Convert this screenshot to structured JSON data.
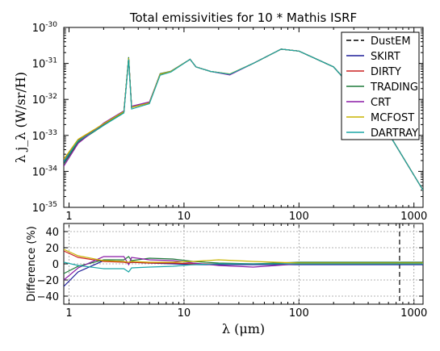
{
  "chart_data": [
    {
      "type": "line",
      "title": "Total emissivities for 10 * Mathis ISRF",
      "xlabel": "",
      "ylabel": "λ j_λ  (W/sr/H)",
      "x_scale": "log",
      "y_scale": "log",
      "xlim": [
        0.9,
        1200
      ],
      "ylim": [
        1e-35,
        1e-30
      ],
      "x_tick_labels": [
        "1",
        "10",
        "100",
        "1000"
      ],
      "y_tick_labels": [
        {
          "base": "10",
          "exp": "-30"
        },
        {
          "base": "10",
          "exp": "-31"
        },
        {
          "base": "10",
          "exp": "-32"
        },
        {
          "base": "10",
          "exp": "-33"
        },
        {
          "base": "10",
          "exp": "-34"
        },
        {
          "base": "10",
          "exp": "-35"
        }
      ],
      "grid": false,
      "legend_position": "top-right",
      "series": [
        {
          "name": "DustEM",
          "color": "#000000",
          "style": "dashed",
          "x": [
            0.9,
            1.2,
            2,
            3.0,
            3.3,
            3.5,
            5,
            6.2,
            7.7,
            11.3,
            12.7,
            17,
            25,
            40,
            70,
            100,
            200,
            500,
            1200
          ],
          "y": [
            1.8e-34,
            7e-34,
            2e-33,
            4.5e-33,
            1.4e-31,
            6e-33,
            8e-33,
            5e-32,
            6e-32,
            1.3e-31,
            8e-32,
            6e-32,
            5e-32,
            1e-31,
            2.5e-31,
            2.2e-31,
            8e-32,
            3e-33,
            3e-35
          ]
        },
        {
          "name": "SKIRT",
          "color": "#1f1f99",
          "style": "solid",
          "x": [
            0.9,
            1.2,
            2,
            3.0,
            3.3,
            3.5,
            5,
            6.2,
            7.7,
            11.3,
            12.7,
            17,
            25,
            40,
            70,
            100,
            200,
            500,
            1200
          ],
          "y": [
            1.8e-34,
            7e-34,
            2e-33,
            4.5e-33,
            1.4e-31,
            6e-33,
            8e-33,
            5e-32,
            6e-32,
            1.3e-31,
            8e-32,
            6e-32,
            5e-32,
            1e-31,
            2.5e-31,
            2.2e-31,
            8e-32,
            3e-33,
            3e-35
          ]
        },
        {
          "name": "DIRTY",
          "color": "#cc2222",
          "style": "solid",
          "x": [
            0.9,
            1.2,
            2,
            3.0,
            3.3,
            3.5,
            5,
            6.2,
            7.7,
            11.3,
            12.7,
            17,
            25,
            40,
            70,
            100,
            200,
            500,
            1200
          ],
          "y": [
            2.1e-34,
            7.5e-34,
            2.1e-33,
            4.6e-33,
            1.4e-31,
            6e-33,
            8e-33,
            5e-32,
            6e-32,
            1.3e-31,
            8e-32,
            6e-32,
            5e-32,
            1e-31,
            2.5e-31,
            2.2e-31,
            8e-32,
            3e-33,
            3e-35
          ]
        },
        {
          "name": "TRADING",
          "color": "#1f7a3a",
          "style": "solid",
          "x": [
            0.9,
            1.2,
            2,
            3.0,
            3.3,
            3.5,
            5,
            6.2,
            7.7,
            11.3,
            12.7,
            17,
            25,
            40,
            70,
            100,
            200,
            500,
            1200
          ],
          "y": [
            1.6e-34,
            6.5e-34,
            1.9e-33,
            4.5e-33,
            1.5e-31,
            6e-33,
            8e-33,
            5.2e-32,
            6.1e-32,
            1.3e-31,
            8e-32,
            6e-32,
            5e-32,
            1e-31,
            2.5e-31,
            2.2e-31,
            8e-32,
            3e-33,
            3e-35
          ]
        },
        {
          "name": "CRT",
          "color": "#8a1aa6",
          "style": "solid",
          "x": [
            0.9,
            1.2,
            2,
            3.0,
            3.3,
            3.5,
            5,
            6.2,
            7.7,
            11.3,
            12.7,
            17,
            25,
            40,
            70,
            100,
            200,
            500,
            1200
          ],
          "y": [
            1.4e-34,
            6e-34,
            2.2e-33,
            4.8e-33,
            1.3e-31,
            6.5e-33,
            8.5e-33,
            5e-32,
            6e-32,
            1.3e-31,
            8e-32,
            6e-32,
            4.8e-32,
            1e-31,
            2.5e-31,
            2.2e-31,
            8e-32,
            3e-33,
            3e-35
          ]
        },
        {
          "name": "MCFOST",
          "color": "#c9b400",
          "style": "solid",
          "x": [
            0.9,
            1.2,
            2,
            3.0,
            3.3,
            3.5,
            5,
            6.2,
            7.7,
            11.3,
            12.7,
            17,
            25,
            40,
            70,
            100,
            200,
            500,
            1200
          ],
          "y": [
            2.2e-34,
            7.8e-34,
            2.1e-33,
            4.6e-33,
            1.4e-31,
            6e-33,
            8e-33,
            5e-32,
            6e-32,
            1.3e-31,
            8e-32,
            6e-32,
            5.1e-32,
            1e-31,
            2.5e-31,
            2.2e-31,
            8e-32,
            3e-33,
            3e-35
          ]
        },
        {
          "name": "DARTRAY",
          "color": "#1aa6a6",
          "style": "solid",
          "x": [
            0.9,
            1.2,
            2,
            3.0,
            3.3,
            3.5,
            5,
            6.2,
            7.7,
            11.3,
            12.7,
            17,
            25,
            40,
            70,
            100,
            200,
            500,
            1200
          ],
          "y": [
            1.9e-34,
            7.1e-34,
            1.9e-33,
            4.2e-33,
            1.3e-31,
            5.4e-33,
            7.6e-33,
            4.7e-32,
            5.8e-32,
            1.3e-31,
            8e-32,
            6e-32,
            5e-32,
            1e-31,
            2.5e-31,
            2.2e-31,
            8e-32,
            3e-33,
            3e-35
          ]
        }
      ],
      "features": {
        "pah_peaks_um": [
          3.3,
          6.2,
          7.7,
          11.3,
          12.7,
          17
        ]
      }
    },
    {
      "type": "line",
      "title": "",
      "xlabel": "λ (μm)",
      "ylabel": "Difference (%)",
      "x_scale": "log",
      "y_scale": "linear",
      "xlim": [
        0.9,
        1200
      ],
      "ylim": [
        -50,
        50
      ],
      "x_tick_labels": [
        "1",
        "10",
        "100",
        "1000"
      ],
      "y_tick_labels": [
        "40",
        "20",
        "0",
        "−20",
        "−40"
      ],
      "grid": true,
      "vertical_line_x": 750,
      "series": [
        {
          "name": "SKIRT",
          "color": "#1f1f99",
          "x": [
            0.9,
            1.2,
            2,
            3.0,
            3.3,
            3.5,
            5,
            8,
            12,
            20,
            40,
            100,
            1200
          ],
          "y": [
            -28,
            -10,
            4,
            3,
            1,
            2,
            1,
            0,
            -1,
            -1,
            -1,
            -1,
            -1
          ]
        },
        {
          "name": "DIRTY",
          "color": "#cc2222",
          "x": [
            0.9,
            1.2,
            2,
            3.0,
            3.3,
            3.5,
            5,
            8,
            12,
            20,
            40,
            100,
            1200
          ],
          "y": [
            16,
            8,
            3,
            2,
            1,
            2,
            1,
            1,
            0,
            0,
            0,
            0,
            0
          ]
        },
        {
          "name": "TRADING",
          "color": "#1f7a3a",
          "x": [
            0.9,
            1.2,
            2,
            3.0,
            3.3,
            3.5,
            5,
            8,
            12,
            20,
            40,
            100,
            1200
          ],
          "y": [
            -12,
            -3,
            5,
            5,
            9,
            4,
            7,
            6,
            3,
            1,
            0,
            2,
            2
          ]
        },
        {
          "name": "CRT",
          "color": "#8a1aa6",
          "x": [
            0.9,
            1.2,
            2,
            3.0,
            3.3,
            3.5,
            5,
            8,
            12,
            20,
            40,
            100,
            1200
          ],
          "y": [
            -20,
            -5,
            9,
            9,
            -1,
            8,
            5,
            4,
            1,
            -2,
            -4,
            0,
            1
          ]
        },
        {
          "name": "MCFOST",
          "color": "#c9b400",
          "x": [
            0.9,
            1.2,
            2,
            3.0,
            3.3,
            3.5,
            5,
            8,
            12,
            20,
            40,
            100,
            1200
          ],
          "y": [
            18,
            10,
            4,
            3,
            2,
            3,
            2,
            2,
            3,
            5,
            3,
            1,
            1
          ]
        },
        {
          "name": "DARTRAY",
          "color": "#1aa6a6",
          "x": [
            0.9,
            1.2,
            2,
            3.0,
            3.3,
            3.5,
            5,
            8,
            12,
            20,
            40,
            100,
            1200
          ],
          "y": [
            2,
            -2,
            -6,
            -6,
            -10,
            -5,
            -4,
            -3,
            -1,
            0,
            0,
            0,
            0
          ]
        }
      ]
    }
  ]
}
